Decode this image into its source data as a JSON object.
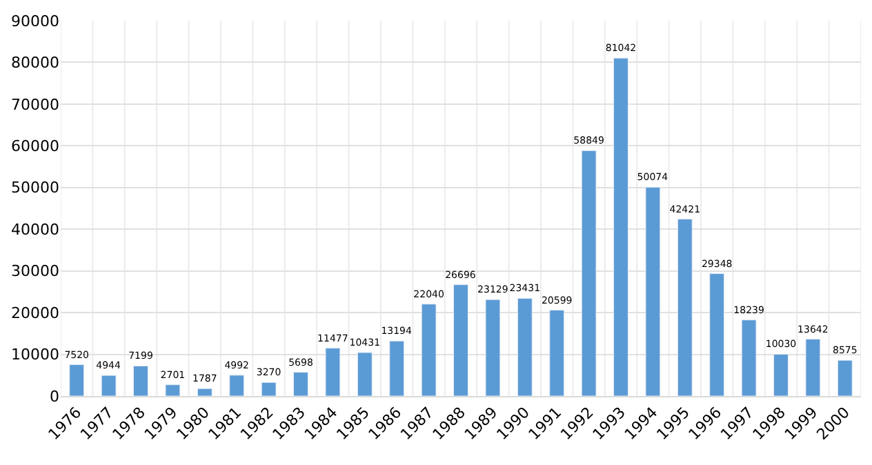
{
  "chart_data": {
    "type": "bar",
    "categories": [
      "1976",
      "1977",
      "1978",
      "1979",
      "1980",
      "1981",
      "1982",
      "1983",
      "1984",
      "1985",
      "1986",
      "1987",
      "1988",
      "1989",
      "1990",
      "1991",
      "1992",
      "1993",
      "1994",
      "1995",
      "1996",
      "1997",
      "1998",
      "1999",
      "2000"
    ],
    "values": [
      7520,
      4944,
      7199,
      2701,
      1787,
      4992,
      3270,
      5698,
      11477,
      10431,
      13194,
      22040,
      26696,
      23129,
      23431,
      20599,
      58849,
      81042,
      50074,
      42421,
      29348,
      18239,
      10030,
      13642,
      8575
    ],
    "color": "#5b9bd5",
    "ylim": [
      0,
      90000
    ],
    "yticks": [
      0,
      10000,
      20000,
      30000,
      40000,
      50000,
      60000,
      70000,
      80000,
      90000
    ],
    "grid": true,
    "data_labels": true
  }
}
